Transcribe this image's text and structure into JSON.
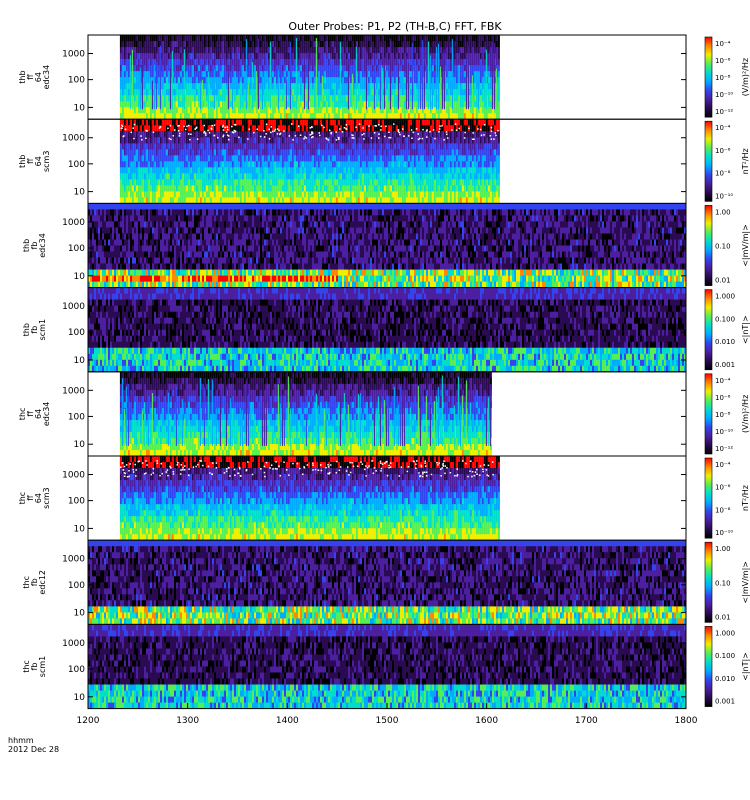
{
  "title": "Outer Probes: P1, P2 (TH-B,C) FFT, FBK",
  "footer": {
    "line1": "hhmm",
    "line2": "2012 Dec 28"
  },
  "chart_data": {
    "type": "heatmap",
    "x_axis": {
      "range": [
        1200,
        1800
      ],
      "tick_labels": [
        "1200",
        "1300",
        "1400",
        "1500",
        "1600",
        "1700",
        "1800"
      ]
    },
    "panels": [
      {
        "label": [
          "thb",
          "ff",
          "64",
          "edc34"
        ],
        "y_tick_labels": [
          "1000",
          "100",
          "10"
        ],
        "colorbar_label": "(V/m)²/Hz",
        "colorbar_ticks": [
          "10⁻⁴",
          "10⁻⁶",
          "10⁻⁸",
          "10⁻¹⁰",
          "10⁻¹²"
        ],
        "data_x_range": [
          1232,
          1612
        ]
      },
      {
        "label": [
          "thb",
          "ff",
          "64",
          "scm3"
        ],
        "y_tick_labels": [
          "1000",
          "100",
          "10"
        ],
        "colorbar_label": "nT²/Hz",
        "colorbar_ticks": [
          "10⁻⁴",
          "10⁻⁶",
          "10⁻⁸",
          "10⁻¹⁰"
        ],
        "data_x_range": [
          1232,
          1612
        ]
      },
      {
        "label": [
          "thb",
          "fb",
          "edc34"
        ],
        "y_tick_labels": [
          "1000",
          "100",
          "10"
        ],
        "colorbar_label": "<|mV/m|>",
        "colorbar_ticks": [
          "1.00",
          "0.10",
          "0.01"
        ],
        "data_x_range": [
          1200,
          1800
        ]
      },
      {
        "label": [
          "thb",
          "fb",
          "scm1"
        ],
        "y_tick_labels": [
          "1000",
          "100",
          "10"
        ],
        "colorbar_label": "<|nT|>",
        "colorbar_ticks": [
          "1.000",
          "0.100",
          "0.010",
          "0.001"
        ],
        "data_x_range": [
          1200,
          1800
        ]
      },
      {
        "label": [
          "thc",
          "ff",
          "64",
          "edc34"
        ],
        "y_tick_labels": [
          "1000",
          "100",
          "10"
        ],
        "colorbar_label": "(V/m)²/Hz",
        "colorbar_ticks": [
          "10⁻⁴",
          "10⁻⁶",
          "10⁻⁸",
          "10⁻¹⁰",
          "10⁻¹²"
        ],
        "data_x_range": [
          1232,
          1605
        ]
      },
      {
        "label": [
          "thc",
          "ff",
          "64",
          "scm3"
        ],
        "y_tick_labels": [
          "1000",
          "100",
          "10"
        ],
        "colorbar_label": "nT²/Hz",
        "colorbar_ticks": [
          "10⁻⁴",
          "10⁻⁶",
          "10⁻⁸",
          "10⁻¹⁰"
        ],
        "data_x_range": [
          1232,
          1612
        ]
      },
      {
        "label": [
          "thc",
          "fb",
          "edc12"
        ],
        "y_tick_labels": [
          "1000",
          "100",
          "10"
        ],
        "colorbar_label": "<|mV/m|>",
        "colorbar_ticks": [
          "1.00",
          "0.10",
          "0.01"
        ],
        "data_x_range": [
          1200,
          1800
        ]
      },
      {
        "label": [
          "thc",
          "fb",
          "scm1"
        ],
        "y_tick_labels": [
          "1000",
          "100",
          "10"
        ],
        "colorbar_label": "<|nT|>",
        "colorbar_ticks": [
          "1.000",
          "0.100",
          "0.010",
          "0.001"
        ],
        "data_x_range": [
          1200,
          1800
        ]
      }
    ],
    "colormap": [
      "#000000",
      "#2a0a50",
      "#4b1fa0",
      "#3344ee",
      "#00aaff",
      "#00ddcc",
      "#55ee55",
      "#eeee00",
      "#ff8800",
      "#ff0000"
    ]
  }
}
